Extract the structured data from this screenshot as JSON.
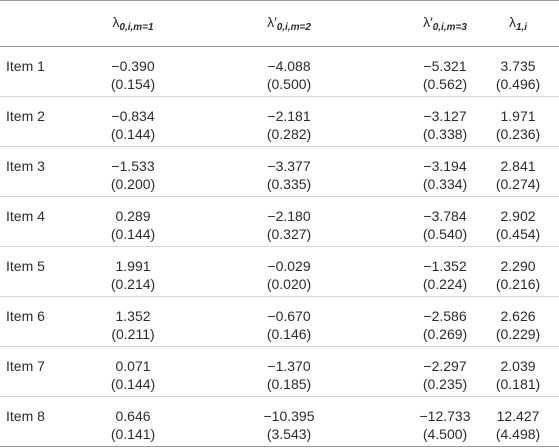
{
  "table": {
    "headers": [
      {
        "sym": "λ",
        "sub": "0,i,m=1"
      },
      {
        "sym": "λ′",
        "sub": "0,i,m=2"
      },
      {
        "sym": "λ′",
        "sub": "0,i,m=3"
      },
      {
        "sym": "λ",
        "sub": "1,i"
      }
    ],
    "rows": [
      {
        "label": "Item 1",
        "cells": [
          [
            "−0.390",
            "(0.154)"
          ],
          [
            "−4.088",
            "(0.500)"
          ],
          [
            "−5.321",
            "(0.562)"
          ],
          [
            "3.735",
            "(0.496)"
          ]
        ]
      },
      {
        "label": "Item 2",
        "cells": [
          [
            "−0.834",
            "(0.144)"
          ],
          [
            "−2.181",
            "(0.282)"
          ],
          [
            "−3.127",
            "(0.338)"
          ],
          [
            "1.971",
            "(0.236)"
          ]
        ]
      },
      {
        "label": "Item 3",
        "cells": [
          [
            "−1.533",
            "(0.200)"
          ],
          [
            "−3.377",
            "(0.335)"
          ],
          [
            "−3.194",
            "(0.334)"
          ],
          [
            "2.841",
            "(0.274)"
          ]
        ]
      },
      {
        "label": "Item 4",
        "cells": [
          [
            "0.289",
            "(0.144)"
          ],
          [
            "−2.180",
            "(0.327)"
          ],
          [
            "−3.784",
            "(0.540)"
          ],
          [
            "2.902",
            "(0.454)"
          ]
        ]
      },
      {
        "label": "Item 5",
        "cells": [
          [
            "1.991",
            "(0.214)"
          ],
          [
            "−0.029",
            "(0.020)"
          ],
          [
            "−1.352",
            "(0.224)"
          ],
          [
            "2.290",
            "(0.216)"
          ]
        ]
      },
      {
        "label": "Item 6",
        "cells": [
          [
            "1.352",
            "(0.211)"
          ],
          [
            "−0.670",
            "(0.146)"
          ],
          [
            "−2.586",
            "(0.269)"
          ],
          [
            "2.626",
            "(0.229)"
          ]
        ]
      },
      {
        "label": "Item 7",
        "cells": [
          [
            "0.071",
            "(0.144)"
          ],
          [
            "−1.370",
            "(0.185)"
          ],
          [
            "−2.297",
            "(0.235)"
          ],
          [
            "2.039",
            "(0.181)"
          ]
        ]
      },
      {
        "label": "Item 8",
        "cells": [
          [
            "0.646",
            "(0.141)"
          ],
          [
            "−10.395",
            "(3.543)"
          ],
          [
            "−12.733",
            "(4.500)"
          ],
          [
            "12.427",
            "(4.498)"
          ]
        ]
      }
    ]
  }
}
